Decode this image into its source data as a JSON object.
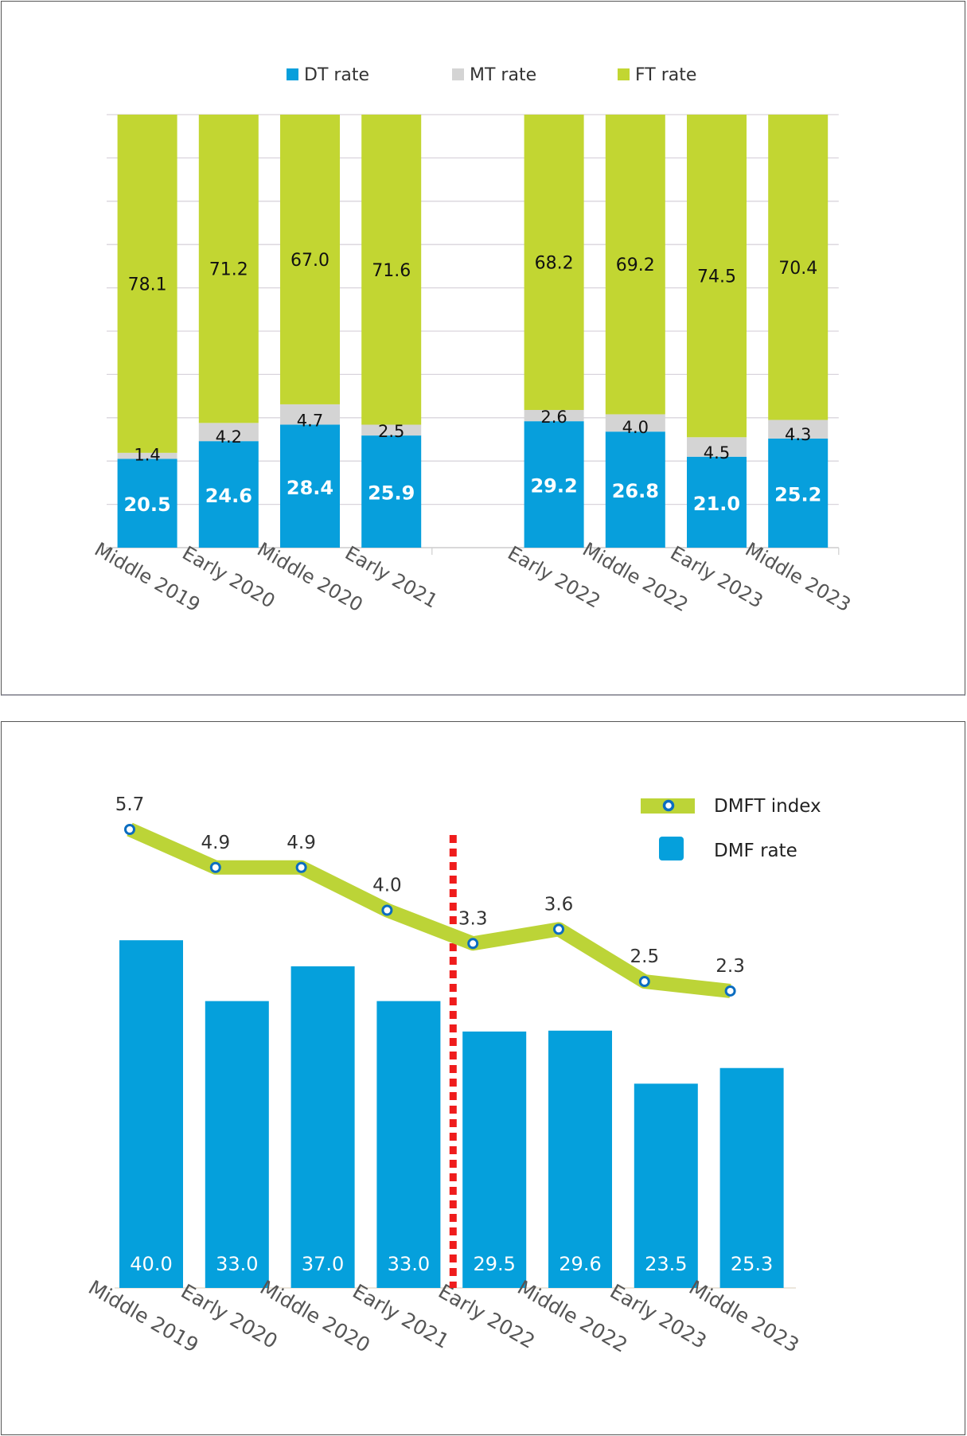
{
  "colors": {
    "dt": "#079fdc",
    "mt": "#d4d4d4",
    "ft": "#c2d632",
    "dmf_bar": "#05a0dc",
    "dmft_line": "#bcd437",
    "dmft_marker": "#0b6dc0",
    "divider": "#ef1c1c",
    "grid": "#d9d4dc",
    "text": "#222222",
    "axis_text": "#555555"
  },
  "chart_data": [
    {
      "type": "bar",
      "stacked": true,
      "title": "",
      "xlabel": "",
      "ylabel": "",
      "ylim": [
        0,
        100
      ],
      "grid": true,
      "legend_position": "top-center",
      "legend": [
        "DT rate",
        "MT rate",
        "FT rate"
      ],
      "categories": [
        "Middle 2019",
        "Early 2020",
        "Middle 2020",
        "Early 2021",
        "",
        "Early 2022",
        "Middle 2022",
        "Early 2023",
        "Middle 2023"
      ],
      "series": [
        {
          "name": "DT rate",
          "values": [
            20.5,
            24.6,
            28.4,
            25.9,
            null,
            29.2,
            26.8,
            21.0,
            25.2
          ]
        },
        {
          "name": "MT rate",
          "values": [
            1.4,
            4.2,
            4.7,
            2.5,
            null,
            2.6,
            4.0,
            4.5,
            4.3
          ]
        },
        {
          "name": "FT rate",
          "values": [
            78.1,
            71.2,
            67.0,
            71.6,
            null,
            68.2,
            69.2,
            74.5,
            70.4
          ]
        }
      ],
      "labels": {
        "DT rate": [
          "20.5",
          "24.6",
          "28.4",
          "25.9",
          "",
          "29.2",
          "26.8",
          "21.0",
          "25.2"
        ],
        "MT rate": [
          "1.4",
          "4.2",
          "4.7",
          "2.5",
          "",
          "2.6",
          "4.0",
          "4.5",
          "4.3"
        ],
        "FT rate": [
          "78.1",
          "71.2",
          "67.0",
          "71.6",
          "",
          "68.2",
          "69.2",
          "74.5",
          "70.4"
        ]
      }
    },
    {
      "type": "bar",
      "combo": "bar+line",
      "title": "",
      "xlabel": "",
      "ylabel": "",
      "grid": false,
      "legend_position": "top-right",
      "legend": [
        "DMFT index",
        "DMF rate"
      ],
      "categories": [
        "Middle 2019",
        "Early 2020",
        "Middle 2020",
        "Early 2021",
        "Early 2022",
        "Middle 2022",
        "Early 2023",
        "Middle 2023"
      ],
      "series": [
        {
          "name": "DMF rate",
          "type": "bar",
          "values": [
            40.0,
            33.0,
            37.0,
            33.0,
            29.5,
            29.6,
            23.5,
            25.3
          ],
          "labels": [
            "40.0",
            "33.0",
            "37.0",
            "33.0",
            "29.5",
            "29.6",
            "23.5",
            "25.3"
          ]
        },
        {
          "name": "DMFT index",
          "type": "line",
          "values": [
            5.7,
            4.9,
            4.9,
            4.0,
            3.3,
            3.6,
            2.5,
            2.3
          ],
          "labels": [
            "5.7",
            "4.9",
            "4.9",
            "4.0",
            "3.3",
            "3.6",
            "2.5",
            "2.3"
          ]
        }
      ],
      "annotations": [
        {
          "type": "vertical-dashed-line",
          "between": [
            "Early 2021",
            "Early 2022"
          ]
        }
      ]
    }
  ]
}
